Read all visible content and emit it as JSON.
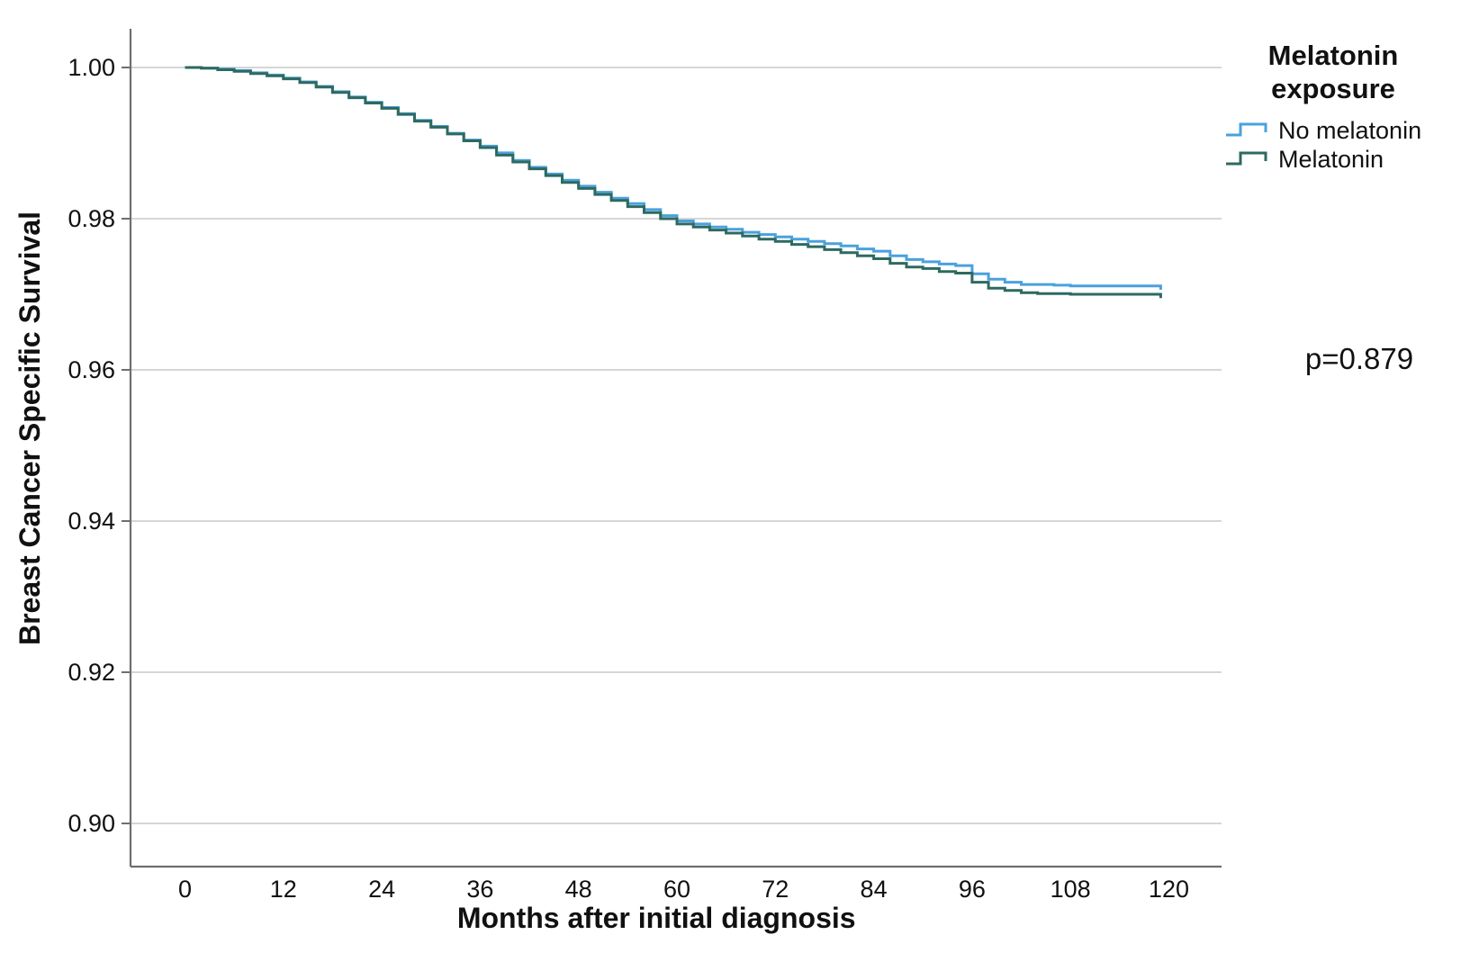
{
  "figure": {
    "background": "#ffffff",
    "text_color": "#111111"
  },
  "chart_data": {
    "type": "line",
    "subtype": "kaplan-meier-step-curves",
    "title": "",
    "xlabel": "Months after initial diagnosis",
    "ylabel": "Breast Cancer Specific Survival",
    "xlim": [
      -7,
      127
    ],
    "ylim": [
      0.894,
      1.005
    ],
    "xticks": [
      0,
      12,
      24,
      36,
      48,
      60,
      72,
      84,
      96,
      108,
      120
    ],
    "xtick_labels": [
      "0",
      "12",
      "24",
      "36",
      "48",
      "60",
      "72",
      "84",
      "96",
      "108",
      "120"
    ],
    "yticks": [
      1.0,
      0.98,
      0.96,
      0.94,
      0.92,
      0.9
    ],
    "ytick_labels": [
      "1.00",
      "0.98",
      "0.96",
      "0.94",
      "0.92",
      "0.90"
    ],
    "grid": "horizontal",
    "gridline_color": "#c9c9c9",
    "axis_color": "#6e6e6e",
    "legend": {
      "title_lines": [
        "Melatonin",
        "exposure"
      ],
      "position": "outside-top-right",
      "entries": [
        {
          "name": "No melatonin",
          "color": "#4aa1dd"
        },
        {
          "name": "Melatonin",
          "color": "#2d6a60"
        }
      ]
    },
    "annotation": {
      "text": "p=0.879"
    },
    "series": [
      {
        "name": "No melatonin",
        "color": "#4aa1dd",
        "points": [
          [
            0,
            1.0
          ],
          [
            2,
            0.9999
          ],
          [
            4,
            0.9998
          ],
          [
            6,
            0.9996
          ],
          [
            8,
            0.9993
          ],
          [
            10,
            0.999
          ],
          [
            12,
            0.9986
          ],
          [
            14,
            0.9981
          ],
          [
            16,
            0.9975
          ],
          [
            18,
            0.9968
          ],
          [
            20,
            0.9961
          ],
          [
            22,
            0.9954
          ],
          [
            24,
            0.9947
          ],
          [
            26,
            0.9939
          ],
          [
            28,
            0.993
          ],
          [
            30,
            0.9922
          ],
          [
            32,
            0.9913
          ],
          [
            34,
            0.9904
          ],
          [
            36,
            0.9896
          ],
          [
            38,
            0.9887
          ],
          [
            40,
            0.9877
          ],
          [
            42,
            0.9868
          ],
          [
            44,
            0.9859
          ],
          [
            46,
            0.9851
          ],
          [
            48,
            0.9843
          ],
          [
            50,
            0.9835
          ],
          [
            52,
            0.9827
          ],
          [
            54,
            0.982
          ],
          [
            56,
            0.9812
          ],
          [
            58,
            0.9804
          ],
          [
            60,
            0.9797
          ],
          [
            62,
            0.9793
          ],
          [
            64,
            0.9789
          ],
          [
            66,
            0.9786
          ],
          [
            68,
            0.9782
          ],
          [
            70,
            0.9779
          ],
          [
            72,
            0.9776
          ],
          [
            74,
            0.9773
          ],
          [
            76,
            0.977
          ],
          [
            78,
            0.9767
          ],
          [
            80,
            0.9764
          ],
          [
            82,
            0.976
          ],
          [
            84,
            0.9757
          ],
          [
            86,
            0.9751
          ],
          [
            88,
            0.9746
          ],
          [
            90,
            0.9743
          ],
          [
            92,
            0.974
          ],
          [
            94,
            0.9738
          ],
          [
            96,
            0.9727
          ],
          [
            98,
            0.972
          ],
          [
            100,
            0.9716
          ],
          [
            102,
            0.9713
          ],
          [
            104,
            0.9713
          ],
          [
            106,
            0.9712
          ],
          [
            108,
            0.9711
          ],
          [
            119,
            0.9706
          ]
        ]
      },
      {
        "name": "Melatonin",
        "color": "#2d6a60",
        "points": [
          [
            0,
            1.0
          ],
          [
            2,
            0.9999
          ],
          [
            4,
            0.9997
          ],
          [
            6,
            0.9995
          ],
          [
            8,
            0.9992
          ],
          [
            10,
            0.9989
          ],
          [
            12,
            0.9985
          ],
          [
            14,
            0.998
          ],
          [
            16,
            0.9974
          ],
          [
            18,
            0.9967
          ],
          [
            20,
            0.996
          ],
          [
            22,
            0.9953
          ],
          [
            24,
            0.9946
          ],
          [
            26,
            0.9938
          ],
          [
            28,
            0.9929
          ],
          [
            30,
            0.9921
          ],
          [
            32,
            0.9912
          ],
          [
            34,
            0.9903
          ],
          [
            36,
            0.9894
          ],
          [
            38,
            0.9884
          ],
          [
            40,
            0.9875
          ],
          [
            42,
            0.9866
          ],
          [
            44,
            0.9857
          ],
          [
            46,
            0.9848
          ],
          [
            48,
            0.984
          ],
          [
            50,
            0.9832
          ],
          [
            52,
            0.9824
          ],
          [
            54,
            0.9816
          ],
          [
            56,
            0.9808
          ],
          [
            58,
            0.98
          ],
          [
            60,
            0.9793
          ],
          [
            62,
            0.9789
          ],
          [
            64,
            0.9785
          ],
          [
            66,
            0.9781
          ],
          [
            68,
            0.9777
          ],
          [
            70,
            0.9773
          ],
          [
            72,
            0.977
          ],
          [
            74,
            0.9766
          ],
          [
            76,
            0.9763
          ],
          [
            78,
            0.9759
          ],
          [
            80,
            0.9755
          ],
          [
            82,
            0.9751
          ],
          [
            84,
            0.9747
          ],
          [
            86,
            0.9741
          ],
          [
            88,
            0.9736
          ],
          [
            90,
            0.9734
          ],
          [
            92,
            0.973
          ],
          [
            94,
            0.9728
          ],
          [
            96,
            0.9716
          ],
          [
            98,
            0.9708
          ],
          [
            100,
            0.9705
          ],
          [
            102,
            0.9702
          ],
          [
            104,
            0.9701
          ],
          [
            106,
            0.9701
          ],
          [
            108,
            0.97
          ],
          [
            119,
            0.9695
          ]
        ]
      }
    ]
  }
}
